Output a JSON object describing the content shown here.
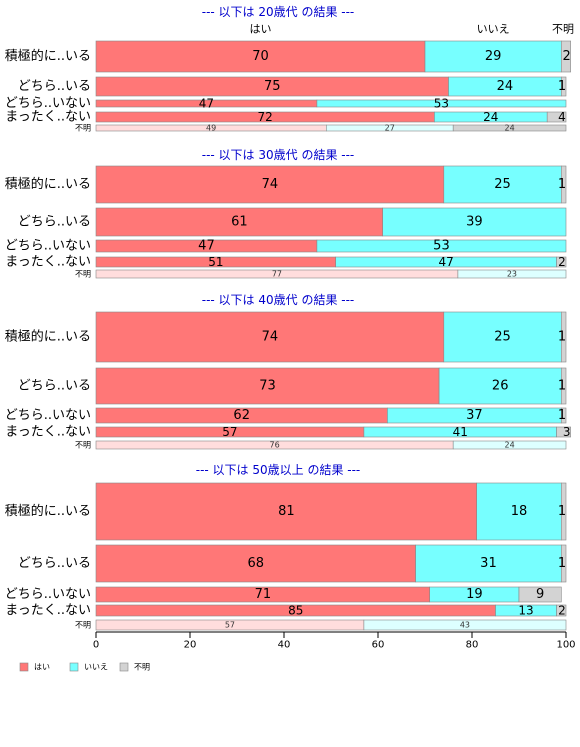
{
  "chart_data": {
    "type": "bar",
    "orientation": "horizontal",
    "stacked": true,
    "xlim": [
      0,
      100
    ],
    "x_ticks": [
      "0",
      "20",
      "40",
      "60",
      "80",
      "100"
    ],
    "column_headers": [
      "はい",
      "いいえ",
      "不明"
    ],
    "legend": {
      "position": "bottom-left",
      "items": [
        "はい",
        "いいえ",
        "不明"
      ]
    },
    "colors": {
      "yes": "#ff7777",
      "no": "#77ffff",
      "unknown": "#d3d3d3",
      "yes_light": "#ffdddd",
      "no_light": "#ddffff",
      "title": "#0000cc"
    },
    "panels": [
      {
        "title": "--- 以下は 20歳代 の結果 ---",
        "rows": [
          {
            "label": "積極的に..いる",
            "size": "large",
            "values": [
              70,
              29,
              2
            ]
          },
          {
            "label": "どちら..いる",
            "size": "medium",
            "values": [
              75,
              24,
              1
            ]
          },
          {
            "label": "どちら..いない",
            "size": "small",
            "values": [
              47,
              53,
              0
            ]
          },
          {
            "label": "まったく..ない",
            "size": "small",
            "values": [
              72,
              24,
              4
            ]
          },
          {
            "label": "不明",
            "size": "tiny",
            "values": [
              49,
              27,
              24
            ]
          }
        ]
      },
      {
        "title": "--- 以下は 30歳代 の結果 ---",
        "rows": [
          {
            "label": "積極的に..いる",
            "size": "large",
            "values": [
              74,
              25,
              1
            ]
          },
          {
            "label": "どちら..いる",
            "size": "large",
            "values": [
              61,
              39,
              0
            ]
          },
          {
            "label": "どちら..いない",
            "size": "medium",
            "values": [
              47,
              53,
              0
            ]
          },
          {
            "label": "まったく..ない",
            "size": "small",
            "values": [
              51,
              47,
              2
            ]
          },
          {
            "label": "不明",
            "size": "tiny",
            "values": [
              77,
              23,
              0
            ]
          }
        ]
      },
      {
        "title": "--- 以下は 40歳代 の結果 ---",
        "rows": [
          {
            "label": "積極的に..いる",
            "size": "large",
            "values": [
              74,
              25,
              1
            ]
          },
          {
            "label": "どちら..いる",
            "size": "large",
            "values": [
              73,
              26,
              1
            ]
          },
          {
            "label": "どちら..いない",
            "size": "medium",
            "values": [
              62,
              37,
              1
            ]
          },
          {
            "label": "まったく..ない",
            "size": "small",
            "values": [
              57,
              41,
              3
            ]
          },
          {
            "label": "不明",
            "size": "tiny",
            "values": [
              76,
              24,
              0
            ]
          }
        ]
      },
      {
        "title": "--- 以下は 50歳以上 の結果 ---",
        "rows": [
          {
            "label": "積極的に..いる",
            "size": "large",
            "values": [
              81,
              18,
              1
            ]
          },
          {
            "label": "どちら..いる",
            "size": "large",
            "values": [
              68,
              31,
              1
            ]
          },
          {
            "label": "どちら..いない",
            "size": "medium",
            "values": [
              71,
              19,
              9
            ]
          },
          {
            "label": "まったく..ない",
            "size": "small",
            "values": [
              85,
              13,
              2
            ]
          },
          {
            "label": "不明",
            "size": "tiny",
            "values": [
              57,
              43,
              0
            ]
          }
        ]
      }
    ]
  }
}
